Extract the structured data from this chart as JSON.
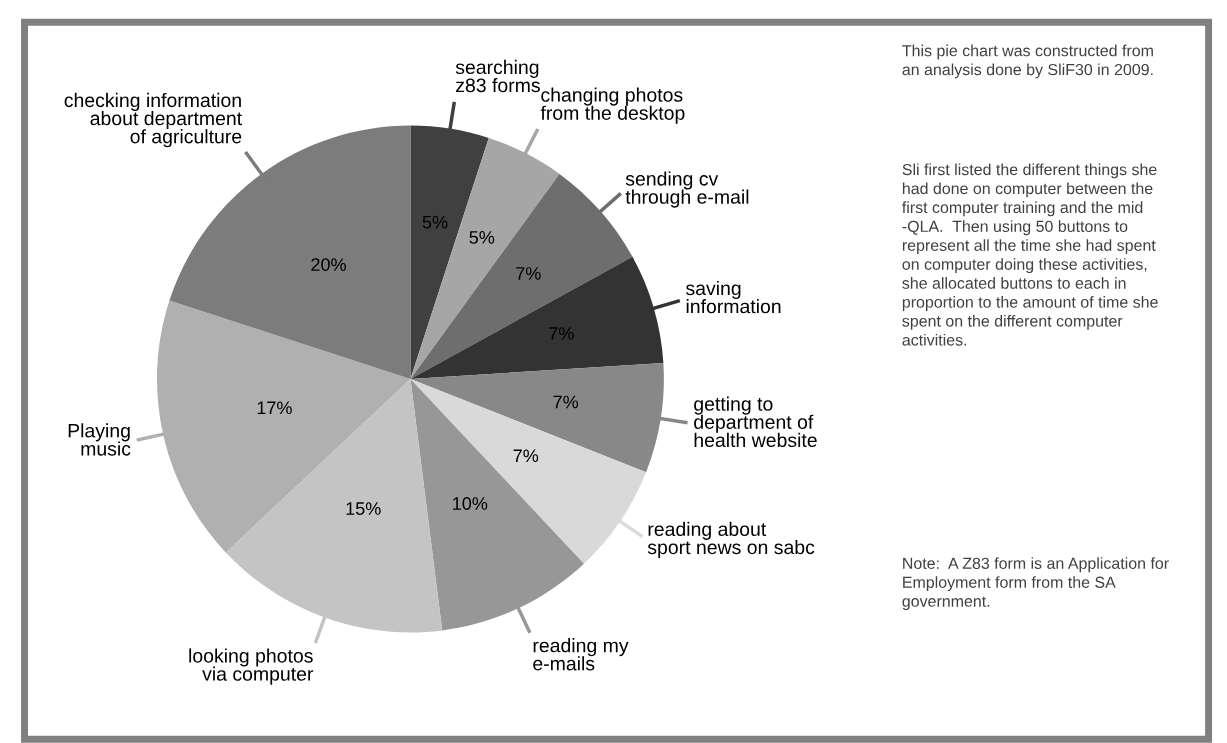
{
  "chart_data": {
    "type": "pie",
    "categories": [
      "searching\nz83 forms",
      "changing photos\nfrom the desktop",
      "sending cv\nthrough e-mail",
      "saving\ninformation",
      "getting to\ndepartment of\nhealth website",
      "reading about\nsport news on sabc",
      "reading my\ne-mails",
      "looking photos\nvia computer",
      "Playing\nmusic",
      "checking information\nabout department\nof agriculture"
    ],
    "values": [
      5,
      5,
      7,
      7,
      7,
      7,
      10,
      15,
      17,
      20
    ],
    "value_labels": [
      "5%",
      "5%",
      "7%",
      "7%",
      "7%",
      "7%",
      "10%",
      "15%",
      "17%",
      "20%"
    ],
    "colors": [
      "#404040",
      "#a6a6a6",
      "#6e6e6e",
      "#333333",
      "#888888",
      "#d9d9d9",
      "#979797",
      "#c4c4c4",
      "#b0b0b0",
      "#7c7c7c"
    ],
    "legend": false,
    "annotations": [
      "This pie chart was constructed from an analysis done by SliF30 in 2009.",
      "Sli first listed the different things she had done on computer between the first computer training and the mid -QLA.  Then using 50 buttons to represent all the time she had spent on computer doing these activities, she allocated buttons to each in proportion to the amount of time she spent on the different computer activities.",
      "Note:  A Z83 form is an Application for Employment form from the SA government."
    ]
  }
}
